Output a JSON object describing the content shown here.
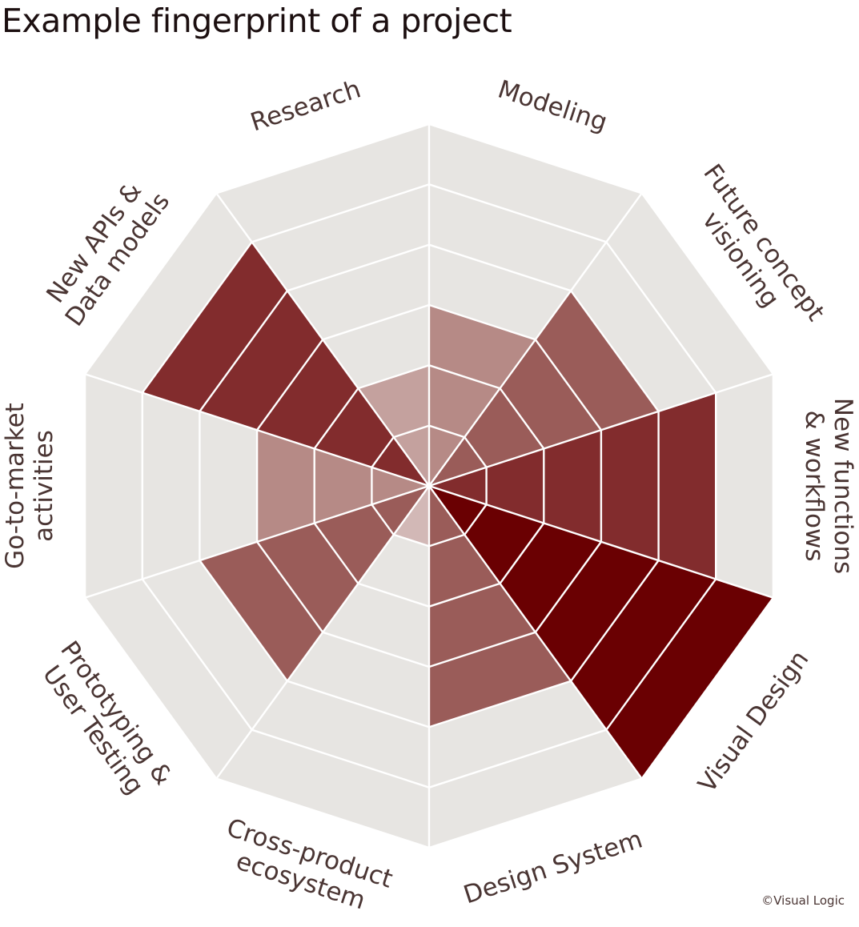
{
  "title": "Example fingerprint of a project",
  "credit": "©Visual Logic",
  "colors": {
    "background_ring": "#e7e5e2",
    "grid_line": "#ffffff",
    "label": "#4a3533"
  },
  "chart_data": {
    "type": "radar",
    "title": "Example fingerprint of a project",
    "levels": 6,
    "max": 6,
    "grid": true,
    "categories": [
      {
        "name": "Modeling",
        "label_lines": [
          "Modeling"
        ],
        "value": 3,
        "color": "#b68a86"
      },
      {
        "name": "Future concept visioning",
        "label_lines": [
          "Future concept",
          "visioning"
        ],
        "value": 4,
        "color": "#9a5c59"
      },
      {
        "name": "New functions & workflows",
        "label_lines": [
          "New functions",
          "& workflows"
        ],
        "value": 5,
        "color": "#822c2d"
      },
      {
        "name": "Visual Design",
        "label_lines": [
          "Visual Design"
        ],
        "value": 6,
        "color": "#6a0002"
      },
      {
        "name": "Design System",
        "label_lines": [
          "Design System"
        ],
        "value": 4,
        "color": "#9a5c59"
      },
      {
        "name": "Cross-product ecosystem",
        "label_lines": [
          "Cross-product",
          "ecosystem"
        ],
        "value": 0,
        "color": "#e7e5e2"
      },
      {
        "name": "Prototyping & User Testing",
        "label_lines": [
          "Prototyping &",
          "User Testing"
        ],
        "value": 4,
        "color": "#9a5c59"
      },
      {
        "name": "Go-to-market activities",
        "label_lines": [
          "Go-to-market",
          "activities"
        ],
        "value": 3,
        "color": "#b68a86"
      },
      {
        "name": "New APIs & Data models",
        "label_lines": [
          "New APIs &",
          "Data models"
        ],
        "value": 5,
        "color": "#822c2d"
      },
      {
        "name": "Research",
        "label_lines": [
          "Research"
        ],
        "value": 2,
        "color": "#c4a19e"
      }
    ],
    "inner_wedge": {
      "between": [
        "Cross-product ecosystem",
        "Prototyping & User Testing"
      ],
      "color": "#d2b8b6"
    }
  }
}
